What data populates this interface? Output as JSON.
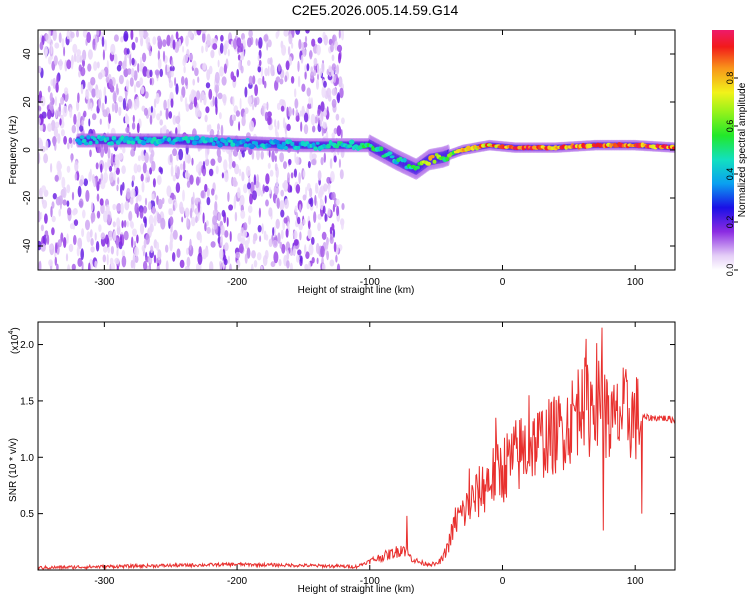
{
  "title": "C2E5.2026.005.14.59.G14",
  "chart_data": [
    {
      "type": "heatmap",
      "title": "C2E5.2026.005.14.59.G14",
      "xlabel": "Height of straight line (km)",
      "ylabel": "Frequency (Hz)",
      "xlim": [
        -350,
        130
      ],
      "ylim": [
        -50,
        50
      ],
      "x_ticks": [
        -300,
        -200,
        -100,
        0,
        100
      ],
      "y_ticks": [
        -40,
        -20,
        0,
        20,
        40
      ],
      "colorbar": {
        "label": "Normalized spectral amplitude",
        "range": [
          0.0,
          1.0
        ],
        "ticks": [
          0.0,
          0.2,
          0.4,
          0.6,
          0.8
        ]
      },
      "noise_region_x": [
        -350,
        -120
      ],
      "ridge": {
        "description_points_x": [
          -320,
          -250,
          -200,
          -150,
          -120,
          -100,
          -80,
          -65,
          -55,
          -45,
          -30,
          -10,
          10,
          40,
          70,
          100,
          130
        ],
        "frequency": [
          4,
          4,
          3,
          2,
          2,
          2,
          -4,
          -8,
          -4,
          -3,
          0,
          2,
          1,
          1,
          2,
          2,
          1
        ],
        "peak_amplitude": [
          0.45,
          0.45,
          0.45,
          0.45,
          0.5,
          0.55,
          0.5,
          0.55,
          0.85,
          0.6,
          0.8,
          0.9,
          0.95,
          0.95,
          0.95,
          0.95,
          0.95
        ]
      }
    },
    {
      "type": "line",
      "xlabel": "Height of straight line (km)",
      "ylabel": "SNR (10 * v/v)",
      "y_multiplier": "(x10^4)",
      "y_multiplier_base": "(x10",
      "y_multiplier_exp": "4",
      "xlim": [
        -350,
        130
      ],
      "ylim": [
        0,
        2.2
      ],
      "x_ticks": [
        -300,
        -200,
        -100,
        0,
        100
      ],
      "y_ticks": [
        0.5,
        1.0,
        1.5,
        2.0
      ],
      "series": [
        {
          "name": "SNR",
          "color": "#e8302e",
          "x": [
            -350,
            -300,
            -250,
            -200,
            -150,
            -110,
            -100,
            -90,
            -80,
            -75,
            -70,
            -65,
            -60,
            -50,
            -45,
            -40,
            -35,
            -30,
            -20,
            -10,
            0,
            10,
            20,
            30,
            40,
            50,
            60,
            65,
            70,
            75,
            80,
            85,
            90,
            100,
            110,
            120,
            130
          ],
          "y": [
            0.02,
            0.03,
            0.04,
            0.05,
            0.04,
            0.03,
            0.08,
            0.12,
            0.16,
            0.2,
            0.12,
            0.08,
            0.06,
            0.05,
            0.1,
            0.25,
            0.45,
            0.5,
            0.65,
            0.8,
            0.9,
            1.0,
            1.1,
            1.15,
            1.2,
            1.3,
            1.5,
            1.4,
            1.6,
            1.5,
            1.3,
            1.3,
            1.4,
            1.35,
            1.35,
            1.35,
            1.33
          ],
          "spikes": [
            [
              -72,
              0.48
            ],
            [
              -25,
              0.9
            ],
            [
              -5,
              1.35
            ],
            [
              20,
              1.55
            ],
            [
              60,
              1.78
            ],
            [
              63,
              2.05
            ],
            [
              72,
              1.4
            ],
            [
              75,
              2.15
            ],
            [
              76,
              0.35
            ],
            [
              80,
              1.55
            ],
            [
              105,
              0.5
            ]
          ]
        }
      ]
    }
  ]
}
